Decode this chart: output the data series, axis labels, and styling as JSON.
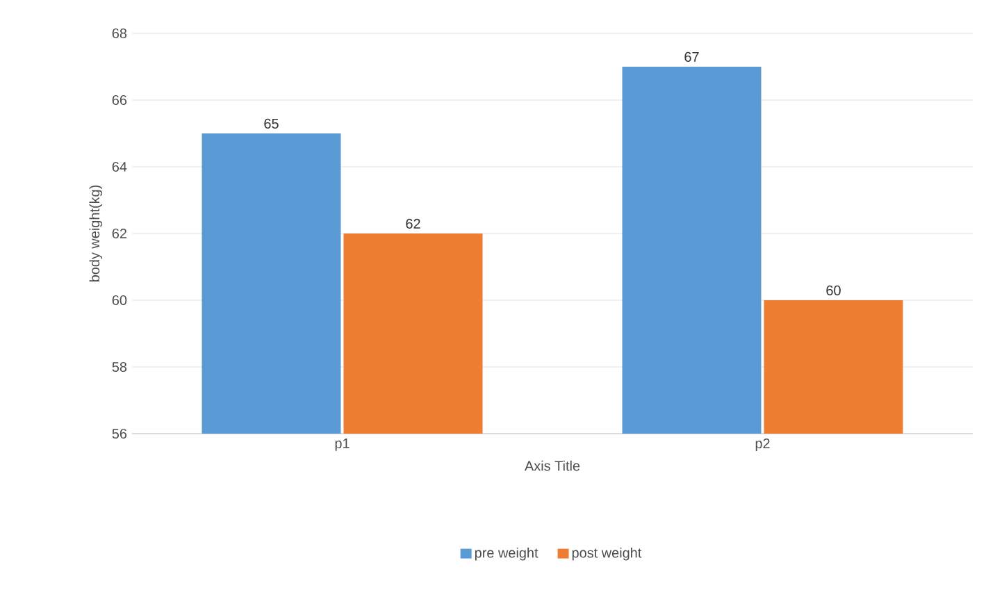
{
  "chart_data": {
    "type": "bar",
    "categories": [
      "p1",
      "p2"
    ],
    "series": [
      {
        "name": "pre weight",
        "color": "#5b9bd5",
        "values": [
          65,
          67
        ]
      },
      {
        "name": "post weight",
        "color": "#ed7d31",
        "values": [
          62,
          60
        ]
      }
    ],
    "xlabel": "Axis Title",
    "ylabel": "body weight(kg)",
    "ylim": [
      56,
      68
    ],
    "yticks": [
      56,
      58,
      60,
      62,
      64,
      66,
      68
    ],
    "grid": "y",
    "legend": "bottom",
    "data_labels": true
  }
}
